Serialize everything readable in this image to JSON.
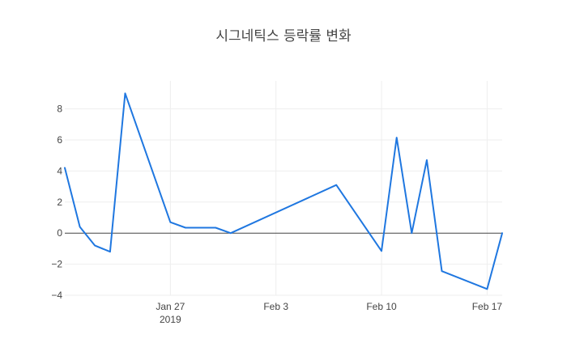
{
  "chart_data": {
    "type": "line",
    "title": "시그네틱스 등락률 변화",
    "xlabel": "",
    "ylabel": "",
    "x_ticks": [
      {
        "date": "2019-01-27",
        "label": "Jan 27",
        "sublabel": "2019"
      },
      {
        "date": "2019-02-03",
        "label": "Feb 3",
        "sublabel": ""
      },
      {
        "date": "2019-02-10",
        "label": "Feb 10",
        "sublabel": ""
      },
      {
        "date": "2019-02-17",
        "label": "Feb 17",
        "sublabel": ""
      }
    ],
    "y_ticks": [
      {
        "value": 8,
        "label": "8"
      },
      {
        "value": 6,
        "label": "6"
      },
      {
        "value": 4,
        "label": "4"
      },
      {
        "value": 2,
        "label": "2"
      },
      {
        "value": 0,
        "label": "0"
      },
      {
        "value": -2,
        "label": "−2"
      },
      {
        "value": -4,
        "label": "−4"
      }
    ],
    "xlim": [
      "2019-01-20",
      "2019-02-18"
    ],
    "ylim": [
      -4.0,
      9.8
    ],
    "grid": true,
    "zero_line": true,
    "series": [
      {
        "color": "#1f77e0",
        "x": [
          "2019-01-20",
          "2019-01-21",
          "2019-01-22",
          "2019-01-23",
          "2019-01-24",
          "2019-01-27",
          "2019-01-28",
          "2019-01-29",
          "2019-01-30",
          "2019-01-31",
          "2019-02-07",
          "2019-02-10",
          "2019-02-11",
          "2019-02-12",
          "2019-02-13",
          "2019-02-14",
          "2019-02-17",
          "2019-02-18"
        ],
        "values": [
          4.2,
          0.4,
          -0.8,
          -1.2,
          9.0,
          0.7,
          0.35,
          0.35,
          0.35,
          0.0,
          3.1,
          -1.15,
          6.15,
          0.0,
          4.7,
          -2.45,
          -3.6,
          0.0
        ]
      }
    ]
  }
}
